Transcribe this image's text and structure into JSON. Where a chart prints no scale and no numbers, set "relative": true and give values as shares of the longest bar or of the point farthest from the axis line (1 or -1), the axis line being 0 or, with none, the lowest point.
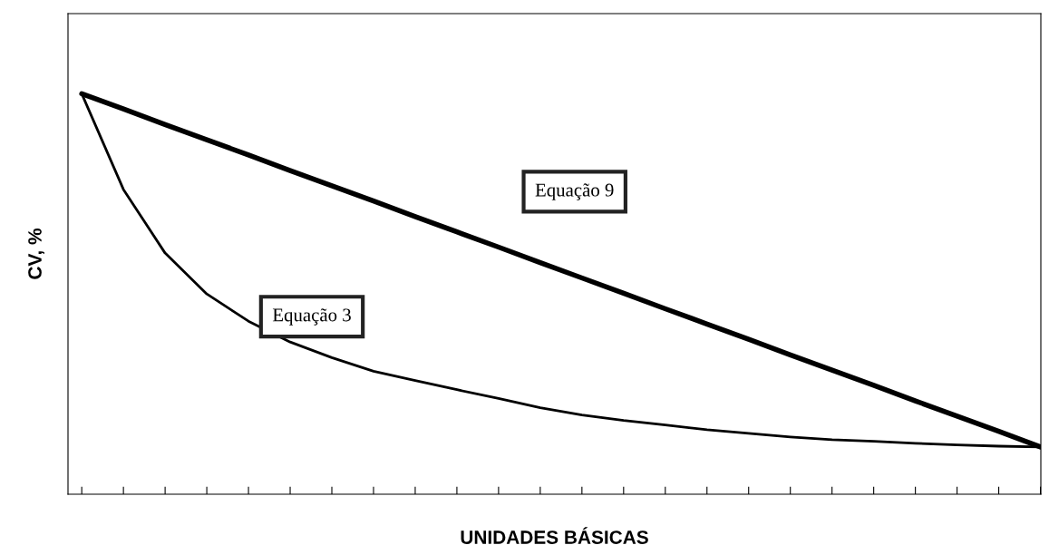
{
  "chart_data": {
    "type": "line",
    "relative": true,
    "xlabel": "UNIDADES BÁSICAS",
    "ylabel": "CV, %",
    "categories": [
      null,
      null,
      null,
      null,
      null,
      null,
      null,
      null,
      null,
      null,
      null,
      null,
      null,
      null,
      null,
      null,
      null,
      null,
      null,
      null,
      null,
      null,
      null,
      null
    ],
    "series": [
      {
        "color": "#000000",
        "values": [
          1.0,
          0.962,
          0.923,
          0.885,
          0.847,
          0.808,
          0.77,
          0.732,
          0.693,
          0.655,
          0.617,
          0.578,
          0.54,
          0.502,
          0.463,
          0.425,
          0.387,
          0.348,
          0.31,
          0.272,
          0.233,
          0.195,
          0.157,
          0.118
        ]
      },
      {
        "color": "#000000",
        "values": [
          1.0,
          0.761,
          0.602,
          0.5,
          0.432,
          0.38,
          0.341,
          0.307,
          0.284,
          0.261,
          0.239,
          0.216,
          0.198,
          0.184,
          0.173,
          0.161,
          0.152,
          0.143,
          0.136,
          0.132,
          0.127,
          0.123,
          0.12,
          0.118
        ]
      }
    ],
    "annotations": [
      "Equação 9",
      "Equação 3"
    ],
    "grid": false,
    "legend": false
  }
}
